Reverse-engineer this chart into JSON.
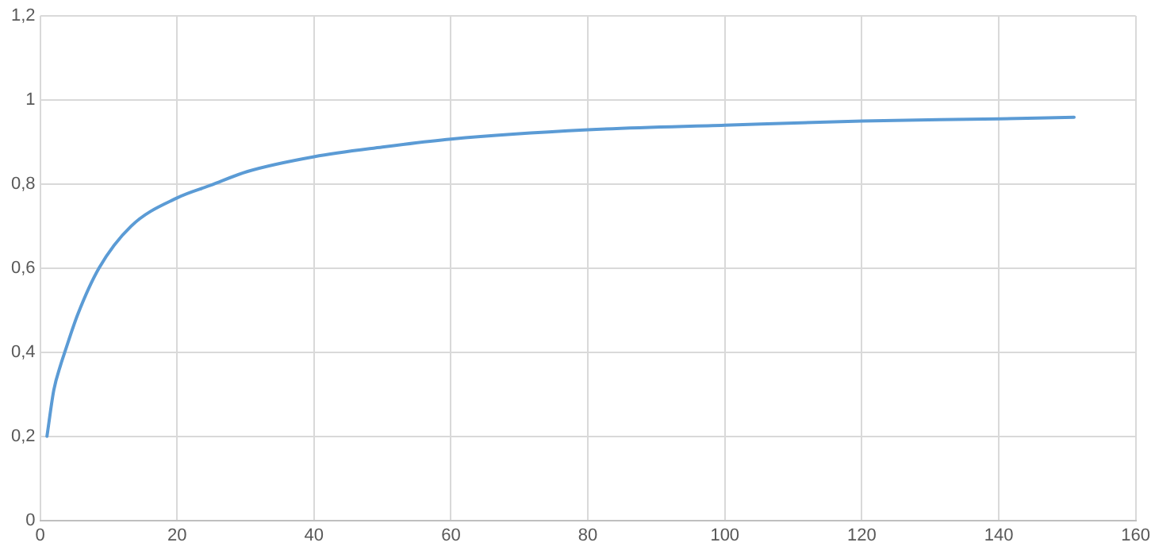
{
  "chart_data": {
    "type": "line",
    "grid": true,
    "legend": false,
    "marker": "none",
    "line_style": "solid",
    "x": [
      1,
      2,
      3,
      3.6,
      5.5,
      8.6,
      13.3,
      20,
      24.9,
      30.3,
      40,
      50,
      60,
      80,
      100,
      120,
      140,
      151
    ],
    "series": [
      {
        "color": "#5b9bd5",
        "values": [
          0.2,
          0.31,
          0.37,
          0.4,
          0.49,
          0.6,
          0.7,
          0.767,
          0.797,
          0.83,
          0.865,
          0.888,
          0.907,
          0.929,
          0.94,
          0.95,
          0.955,
          0.959
        ]
      }
    ],
    "xlim": [
      0,
      160
    ],
    "xticks": [
      0,
      20,
      40,
      60,
      80,
      100,
      120,
      140,
      160
    ],
    "ylim": [
      0,
      1.2
    ],
    "yticks": [
      0,
      {
        "value": 0.2,
        "label": "0,2"
      },
      {
        "value": 0.4,
        "label": "0,4"
      },
      {
        "value": 0.6,
        "label": "0,6"
      },
      {
        "value": 0.8,
        "label": "0,8"
      },
      1,
      {
        "value": 1.2,
        "label": "1,2"
      }
    ]
  }
}
